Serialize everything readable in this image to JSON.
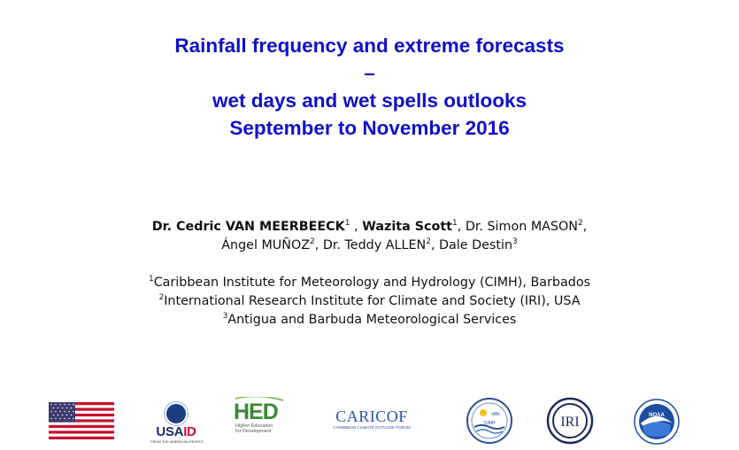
{
  "title": {
    "line1": "Rainfall frequency and extreme forecasts",
    "line2": "–",
    "line3": "wet days and wet spells outlooks",
    "line4": "September to November 2016"
  },
  "authors": {
    "a1_name": "Dr. Cedric VAN MEERBEECK",
    "a1_sup": "1",
    "sep1": " , ",
    "a2_name": "Wazita Scott",
    "a2_sup": "1",
    "a3_name": ", Dr. Simon MASON",
    "a3_sup": "2",
    "a4_name": "Ángel MUÑOZ",
    "a4_sup": "2",
    "a5_name": ", Dr. Teddy ALLEN",
    "a5_sup": "2",
    "a6_name": ", Dale Destin",
    "a6_sup": "3"
  },
  "affiliations": [
    {
      "sup": "1",
      "text": "Caribbean Institute for Meteorology and Hydrology (CIMH), Barbados"
    },
    {
      "sup": "2",
      "text": "International Research Institute for Climate and Society (IRI), USA"
    },
    {
      "sup": "3",
      "text": "Antigua and Barbuda Meteorological Services"
    }
  ],
  "logos": {
    "usaid_word_a": "USA",
    "usaid_word_b": "ID",
    "usaid_tag": "FROM THE AMERICAN PEOPLE",
    "hed_letters": "HED",
    "hed_tag_1": "Higher Education",
    "hed_tag_2": "for Development",
    "caricof_word": "CARICOF",
    "caricof_tag": "CARIBBEAN CLIMATE OUTLOOK FORUM",
    "cimh_label": "CIMH",
    "iri_label": "IRI",
    "noaa_label": "NOAA"
  },
  "colors": {
    "title": "#1010c8",
    "flag_red": "#c8102e",
    "flag_blue": "#3c3b6e",
    "noaa_blue": "#1d4fa0"
  },
  "icons": [
    "us-flag-icon",
    "usaid-logo",
    "hed-logo",
    "caricof-logo",
    "cimh-logo",
    "iri-logo",
    "noaa-logo"
  ]
}
